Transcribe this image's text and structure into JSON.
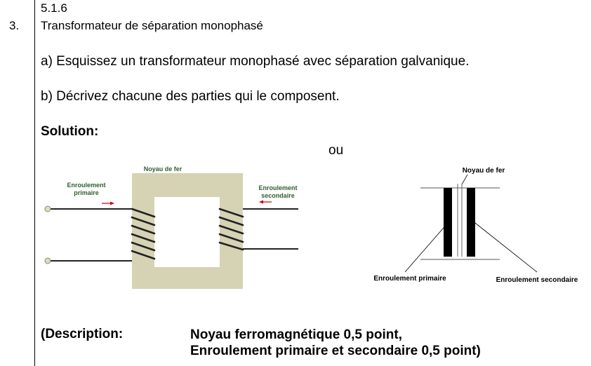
{
  "header": {
    "section": "5.1.6",
    "question_number": "3.",
    "title": "Transformateur de séparation monophasé"
  },
  "questions": {
    "a": "a) Esquissez un transformateur monophasé avec séparation galvanique.",
    "b": "b) Décrivez chacune des parties qui le composent."
  },
  "solution_label": "Solution:",
  "or_label": "ou",
  "figure1": {
    "core_label": "Noyau de fer",
    "primary_label_line1": "Enroulement",
    "primary_label_line2": "primaire",
    "secondary_label_line1": "Enroulement",
    "secondary_label_line2": "secondaire",
    "core_color": "#d6d2b4",
    "label_color": "#2e5e2e",
    "arrow_color": "#cc0000"
  },
  "figure2": {
    "core_label": "Noyau de fer",
    "primary_label": "Enroulement primaire",
    "secondary_label": "Enroulement secondaire"
  },
  "description": {
    "label": "(Description:",
    "line1": "Noyau ferromagnétique 0,5 point,",
    "line2": "Enroulement primaire et secondaire 0,5 point)"
  }
}
